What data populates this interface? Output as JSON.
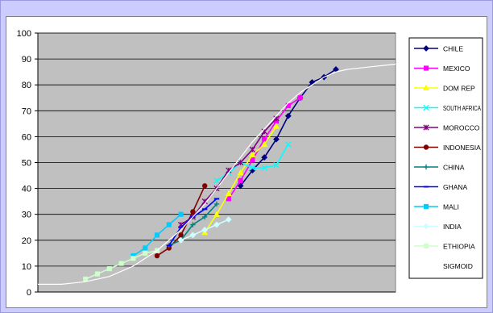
{
  "chart_data": {
    "type": "line",
    "title": "",
    "xlabel": "",
    "ylabel": "",
    "ylim": [
      0,
      100
    ],
    "yticks": [
      0,
      10,
      20,
      30,
      40,
      50,
      60,
      70,
      80,
      90,
      100
    ],
    "xlim": [
      0,
      30
    ],
    "grid": true,
    "legend_position": "right",
    "series": [
      {
        "name": "CHILE",
        "color": "#000080",
        "marker": "diamond",
        "points": [
          [
            17,
            41
          ],
          [
            18,
            47
          ],
          [
            19,
            52
          ],
          [
            20,
            59
          ],
          [
            21,
            68
          ],
          [
            22,
            75
          ],
          [
            23,
            81
          ],
          [
            24,
            83
          ],
          [
            25,
            86
          ]
        ]
      },
      {
        "name": "MEXICO",
        "color": "#ff00ff",
        "marker": "square",
        "points": [
          [
            16,
            36
          ],
          [
            17,
            43
          ],
          [
            18,
            51
          ],
          [
            19,
            59
          ],
          [
            20,
            66
          ],
          [
            21,
            72
          ],
          [
            22,
            75
          ]
        ]
      },
      {
        "name": "DOM REP",
        "color": "#ffff00",
        "marker": "triangle",
        "points": [
          [
            14,
            23
          ],
          [
            15,
            30
          ],
          [
            16,
            38
          ],
          [
            17,
            46
          ],
          [
            18,
            53
          ],
          [
            19,
            57
          ],
          [
            20,
            64
          ]
        ]
      },
      {
        "name": "SOUTH AFRICA",
        "color": "#00ffff",
        "marker": "x",
        "points": [
          [
            15,
            43
          ],
          [
            16,
            46
          ],
          [
            17,
            50
          ],
          [
            18,
            48
          ],
          [
            19,
            48
          ],
          [
            20,
            49
          ],
          [
            21,
            57
          ]
        ]
      },
      {
        "name": "MOROCCO",
        "color": "#800080",
        "marker": "star",
        "points": [
          [
            12,
            26
          ],
          [
            13,
            29
          ],
          [
            14,
            35
          ],
          [
            15,
            40
          ],
          [
            16,
            47
          ],
          [
            17,
            50
          ],
          [
            18,
            55
          ],
          [
            19,
            62
          ],
          [
            20,
            67
          ]
        ]
      },
      {
        "name": "INDONESIA",
        "color": "#800000",
        "marker": "circle",
        "points": [
          [
            10,
            14
          ],
          [
            11,
            17
          ],
          [
            12,
            22
          ],
          [
            13,
            31
          ],
          [
            14,
            41
          ]
        ]
      },
      {
        "name": "CHINA",
        "color": "#008080",
        "marker": "plus",
        "points": [
          [
            11,
            18
          ],
          [
            12,
            20
          ],
          [
            13,
            26
          ],
          [
            14,
            29
          ],
          [
            15,
            34
          ]
        ]
      },
      {
        "name": "GHANA",
        "color": "#0000ff",
        "marker": "dash",
        "points": [
          [
            11,
            18
          ],
          [
            12,
            25
          ],
          [
            13,
            29
          ],
          [
            14,
            32
          ],
          [
            15,
            36
          ]
        ]
      },
      {
        "name": "MALI",
        "color": "#00ccff",
        "marker": "square",
        "points": [
          [
            8,
            14
          ],
          [
            9,
            17
          ],
          [
            10,
            22
          ],
          [
            11,
            26
          ],
          [
            12,
            30
          ]
        ]
      },
      {
        "name": "INDIA",
        "color": "#ccffff",
        "marker": "diamond",
        "points": [
          [
            12,
            20
          ],
          [
            13,
            22
          ],
          [
            14,
            24
          ],
          [
            15,
            26
          ],
          [
            16,
            28
          ]
        ]
      },
      {
        "name": "ETHIOPIA",
        "color": "#ccffcc",
        "marker": "square",
        "points": [
          [
            4,
            5
          ],
          [
            5,
            7
          ],
          [
            6,
            9
          ],
          [
            7,
            11
          ],
          [
            8,
            13
          ],
          [
            9,
            15
          ],
          [
            10,
            16
          ]
        ]
      },
      {
        "name": "SIGMOID",
        "color": "#ffffff",
        "marker": "none",
        "points": [
          [
            0,
            3
          ],
          [
            1,
            3
          ],
          [
            2,
            3
          ],
          [
            3,
            3.5
          ],
          [
            4,
            4
          ],
          [
            5,
            5
          ],
          [
            6,
            6
          ],
          [
            7,
            8
          ],
          [
            8,
            10
          ],
          [
            9,
            13
          ],
          [
            10,
            16
          ],
          [
            11,
            20
          ],
          [
            12,
            24
          ],
          [
            13,
            29
          ],
          [
            14,
            34
          ],
          [
            15,
            40
          ],
          [
            16,
            46
          ],
          [
            17,
            52
          ],
          [
            18,
            58
          ],
          [
            19,
            63
          ],
          [
            20,
            68
          ],
          [
            21,
            73
          ],
          [
            22,
            77
          ],
          [
            23,
            80
          ],
          [
            24,
            83
          ],
          [
            25,
            85
          ],
          [
            26,
            86
          ],
          [
            27,
            86.5
          ],
          [
            28,
            87
          ],
          [
            29,
            87.5
          ],
          [
            30,
            88
          ]
        ]
      }
    ]
  }
}
